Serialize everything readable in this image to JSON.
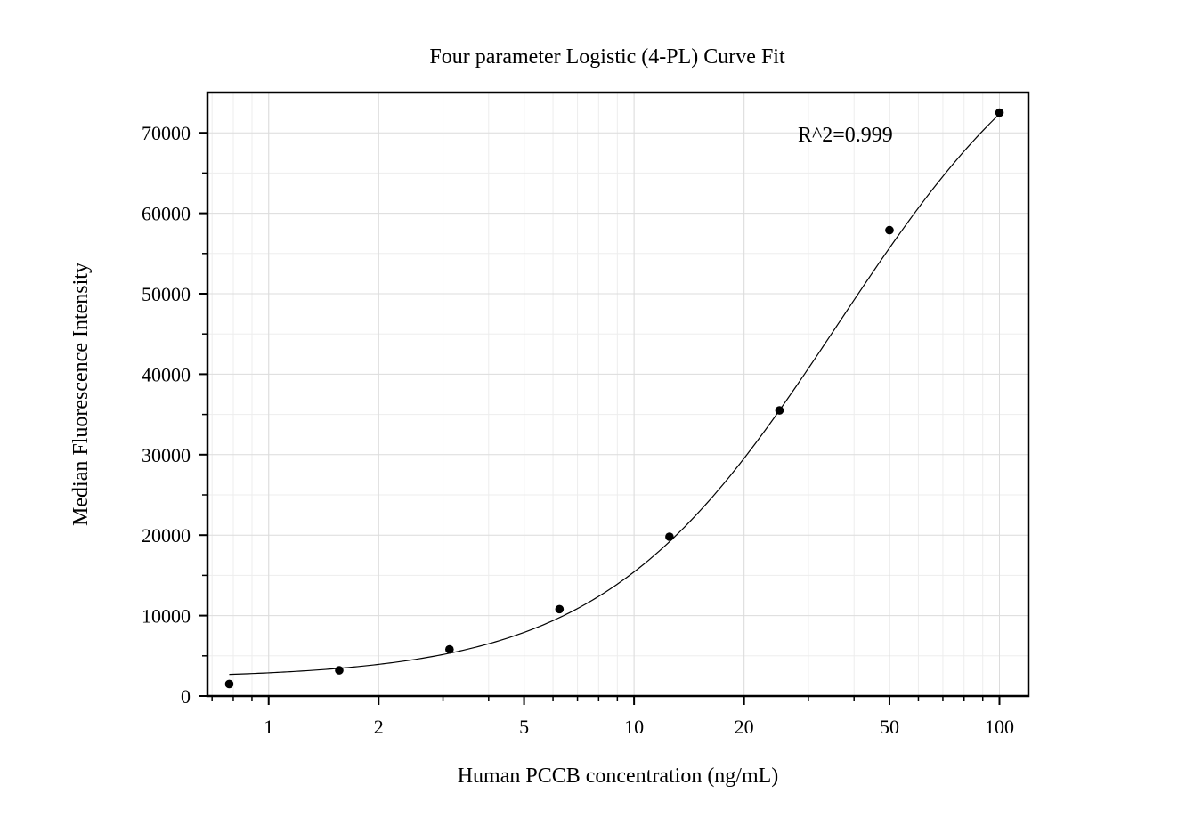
{
  "chart_data": {
    "type": "scatter",
    "title": "Four parameter Logistic (4-PL) Curve Fit",
    "xlabel": "Human PCCB concentration (ng/mL)",
    "ylabel": "Median Fluorescence Intensity",
    "xscale": "log",
    "xlim": [
      0.68,
      120
    ],
    "ylim": [
      0,
      75000
    ],
    "xticks": [
      1,
      2,
      5,
      10,
      20,
      50,
      100
    ],
    "xtick_labels": [
      "1",
      "2",
      "5",
      "10",
      "20",
      "50",
      "100"
    ],
    "yticks": [
      0,
      10000,
      20000,
      30000,
      40000,
      50000,
      60000,
      70000
    ],
    "ytick_labels": [
      "0",
      "10000",
      "20000",
      "30000",
      "40000",
      "50000",
      "60000",
      "70000"
    ],
    "grid": true,
    "annotation": "R^2=0.999",
    "series": [
      {
        "kind": "points",
        "x": [
          0.78,
          1.56,
          3.125,
          6.25,
          12.5,
          25,
          50,
          100
        ],
        "y": [
          1500,
          3200,
          5800,
          10800,
          19800,
          35500,
          57900,
          72500
        ]
      },
      {
        "kind": "fit-curve",
        "model": "4PL",
        "x_range": [
          0.78,
          100
        ],
        "params": {
          "bottom": 2200,
          "top": 90000,
          "ec50": 36,
          "hill": 1.35
        }
      }
    ]
  }
}
